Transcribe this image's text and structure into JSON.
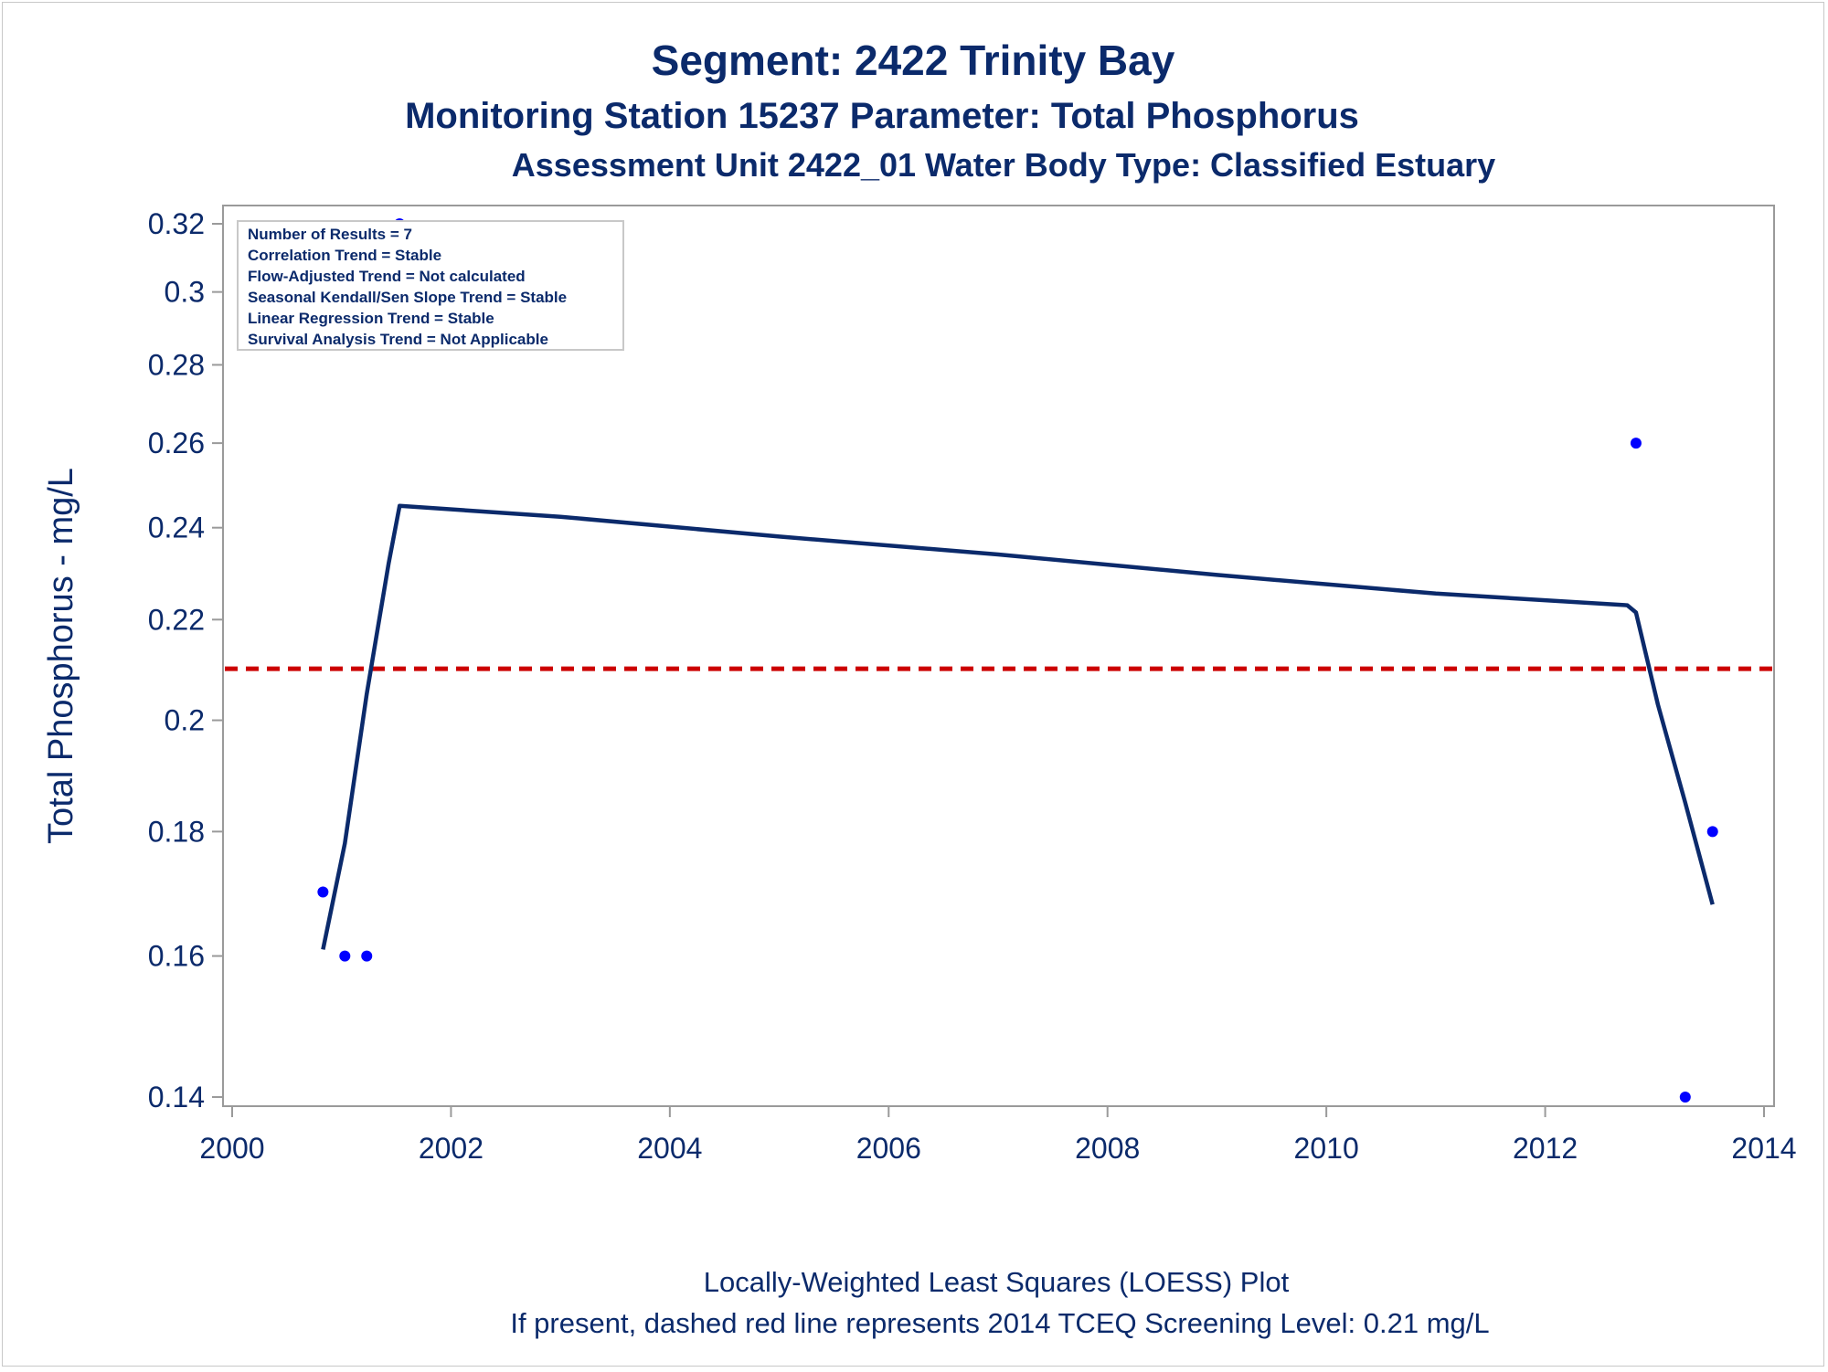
{
  "titles": {
    "line1": "Segment: 2422  Trinity Bay",
    "line2": "Monitoring Station 15237 Parameter: Total Phosphorus",
    "line3": "Assessment Unit 2422_01    Water Body Type: Classified Estuary"
  },
  "footnotes": {
    "line1": "Locally-Weighted Least Squares (LOESS) Plot",
    "line2": "If present, dashed red line represents 2014 TCEQ Screening Level: 0.21 mg/L"
  },
  "stats_box": {
    "lines": [
      "Number of Results = 7",
      "Correlation Trend = Stable",
      "Flow-Adjusted Trend = Not calculated",
      "Seasonal Kendall/Sen Slope Trend = Stable",
      "Linear Regression Trend = Stable",
      "Survival Analysis Trend = Not Applicable"
    ],
    "placement": "top-left"
  },
  "colors": {
    "title": "#0b2a6b",
    "points": "#0000ff",
    "loess": "#0b2a6b",
    "screening": "#cc0000",
    "axis": "#9a9a9a"
  },
  "chart_data": {
    "type": "scatter",
    "ylabel": "Total Phosphorus - mg/L",
    "xlabel": "",
    "y_scale": "log",
    "xlim": [
      2000,
      2014
    ],
    "ylim": [
      0.1395,
      0.3245
    ],
    "x_ticks": [
      2000,
      2002,
      2004,
      2006,
      2008,
      2010,
      2012,
      2014
    ],
    "x_tick_labels": [
      "2000",
      "2002",
      "2004",
      "2006",
      "2008",
      "2010",
      "2012",
      "2014"
    ],
    "y_ticks": [
      0.14,
      0.16,
      0.18,
      0.2,
      0.22,
      0.24,
      0.26,
      0.28,
      0.3,
      0.32
    ],
    "y_tick_labels": [
      "0.14",
      "0.16",
      "0.18",
      "0.2",
      "0.22",
      "0.24",
      "0.26",
      "0.28",
      "0.3",
      "0.32"
    ],
    "grid": false,
    "points": [
      {
        "x": 2000.83,
        "y": 0.17
      },
      {
        "x": 2001.03,
        "y": 0.16
      },
      {
        "x": 2001.23,
        "y": 0.16
      },
      {
        "x": 2001.53,
        "y": 0.32
      },
      {
        "x": 2012.83,
        "y": 0.26
      },
      {
        "x": 2013.28,
        "y": 0.14
      },
      {
        "x": 2013.53,
        "y": 0.18
      }
    ],
    "loess_curve": [
      {
        "x": 2000.83,
        "y": 0.161
      },
      {
        "x": 2001.03,
        "y": 0.178
      },
      {
        "x": 2001.23,
        "y": 0.205
      },
      {
        "x": 2001.43,
        "y": 0.232
      },
      {
        "x": 2001.53,
        "y": 0.245
      },
      {
        "x": 2003.0,
        "y": 0.2425
      },
      {
        "x": 2005.0,
        "y": 0.238
      },
      {
        "x": 2007.0,
        "y": 0.234
      },
      {
        "x": 2009.0,
        "y": 0.2295
      },
      {
        "x": 2011.0,
        "y": 0.2255
      },
      {
        "x": 2012.75,
        "y": 0.223
      },
      {
        "x": 2012.83,
        "y": 0.2215
      },
      {
        "x": 2013.03,
        "y": 0.203
      },
      {
        "x": 2013.28,
        "y": 0.185
      },
      {
        "x": 2013.53,
        "y": 0.168
      }
    ],
    "screening_level": 0.21
  }
}
